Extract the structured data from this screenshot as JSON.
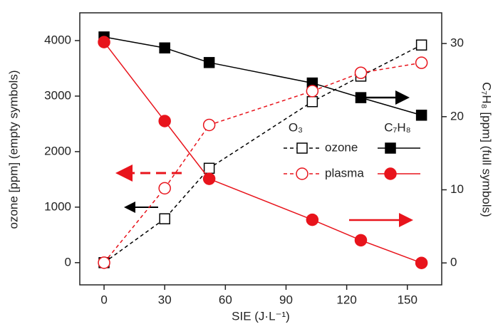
{
  "chart_data": {
    "type": "line",
    "x_label": "SIE (J·L⁻¹)",
    "y_label": "ozone [ppm] (empty symbols)",
    "y2_label": "C₇H₈ [ppm] (full symbols)",
    "x": [
      0,
      30,
      52,
      103,
      127,
      157
    ],
    "xlim": [
      -12,
      167
    ],
    "xticks": [
      0,
      30,
      60,
      90,
      120,
      150
    ],
    "ylim": [
      -400,
      4500
    ],
    "yticks": [
      0,
      1000,
      2000,
      3000,
      4000
    ],
    "y2lim": [
      -3,
      34.2
    ],
    "y2ticks": [
      0,
      10,
      20,
      30
    ],
    "legend_columns": [
      "O₃",
      "C₇H₈"
    ],
    "series": [
      {
        "name": "ozone",
        "color": "#000000",
        "marker": "square",
        "values": [
          0,
          790,
          1700,
          2900,
          3360,
          3920
        ],
        "y2_values": [
          30.9,
          29.4,
          27.4,
          24.6,
          22.6,
          20.2
        ]
      },
      {
        "name": "plasma",
        "color": "#e8141c",
        "marker": "circle",
        "values": [
          0,
          1340,
          2480,
          3090,
          3420,
          3600
        ],
        "y2_values": [
          30.2,
          19.4,
          11.5,
          5.9,
          3.1,
          0
        ]
      }
    ]
  }
}
